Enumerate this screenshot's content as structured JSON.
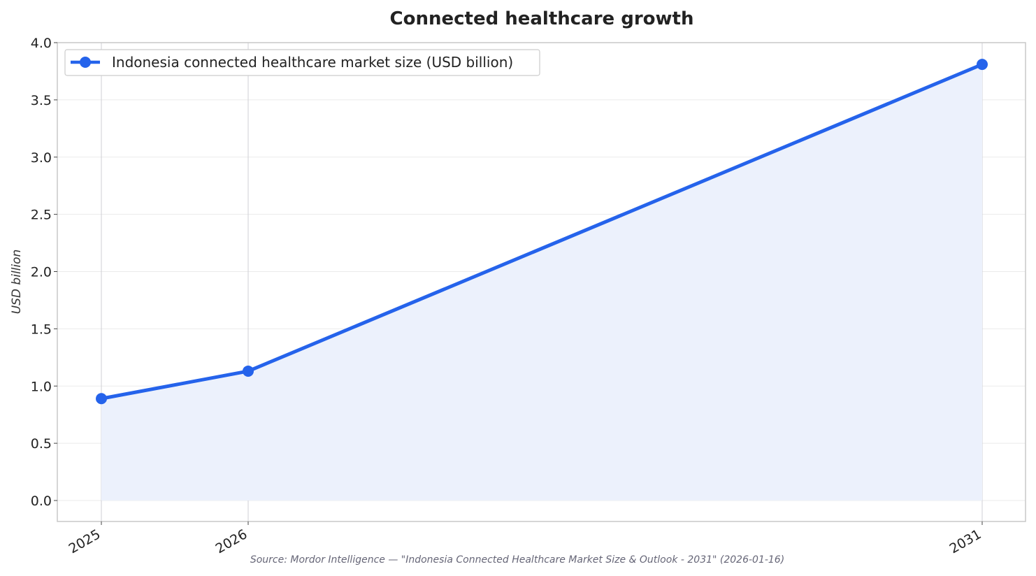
{
  "chart_data": {
    "type": "line",
    "title": "Connected healthcare growth",
    "xlabel": "",
    "ylabel": "USD billion",
    "categories": [
      "2025",
      "2026",
      "2031"
    ],
    "x": [
      2025,
      2026,
      2031
    ],
    "ylim": [
      -0.2,
      4.0
    ],
    "yticks": [
      "0.0",
      "0.5",
      "1.0",
      "1.5",
      "2.0",
      "2.5",
      "3.0",
      "3.5",
      "4.0"
    ],
    "series": [
      {
        "name": "Indonesia connected healthcare market size (USD billion)",
        "values": [
          0.89,
          1.13,
          3.81
        ],
        "color": "#2563eb",
        "fill": "#ecf1fc"
      }
    ],
    "grid": true,
    "area_fill": true,
    "legend_position": "top-left",
    "source": "Source: Mordor Intelligence — \"Indonesia Connected Healthcare Market Size & Outlook - 2031\" (2026-01-16)"
  }
}
